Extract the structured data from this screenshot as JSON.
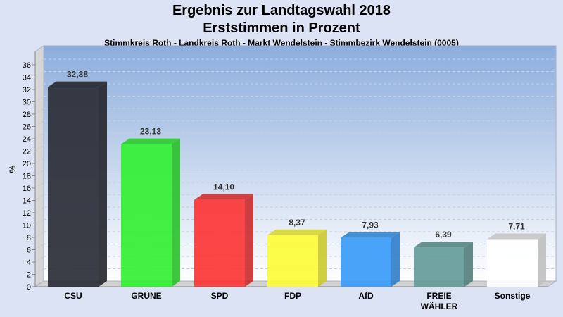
{
  "chart_data": {
    "type": "bar",
    "title": "Ergebnis zur Landtagswahl 2018",
    "subtitle": "Erststimmen in Prozent",
    "caption": "Stimmkreis Roth - Landkreis Roth - Markt Wendelstein - Stimmbezirk Wendelstein (0005)",
    "ylabel": "%",
    "xlabel": "",
    "ylim": [
      0,
      36
    ],
    "yticks": [
      0,
      2,
      4,
      6,
      8,
      10,
      12,
      14,
      16,
      18,
      20,
      22,
      24,
      26,
      28,
      30,
      32,
      34,
      36
    ],
    "grid": true,
    "categories": [
      "CSU",
      "GRÜNE",
      "SPD",
      "FDP",
      "AfD",
      "FREIE WÄHLER",
      "Sonstige"
    ],
    "values": [
      32.38,
      23.13,
      14.1,
      8.37,
      7.93,
      6.39,
      7.71
    ],
    "labels": [
      "32,38",
      "23,13",
      "14,10",
      "8,37",
      "7,93",
      "6,39",
      "7,71"
    ],
    "colors": [
      "#2a2e36",
      "#33f033",
      "#fc3535",
      "#fcfc38",
      "#3a9cf8",
      "#659c98",
      "#ffffff"
    ]
  }
}
